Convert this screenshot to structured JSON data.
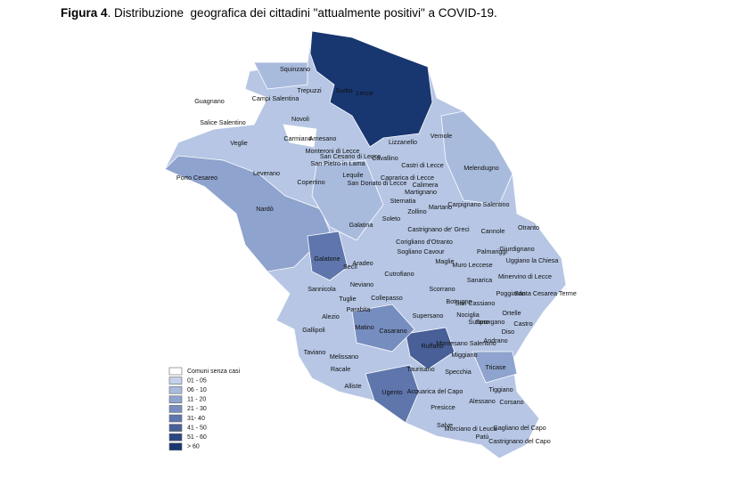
{
  "title": {
    "label": "Figura 4",
    "text": ". Distribuzione  geografica dei cittadini \"attualmente positivi\" a COVID-19."
  },
  "towns": [
    "Squinzano",
    "Trepuzzi",
    "Surbo",
    "Lecce",
    "Campi Salentina",
    "Guagnano",
    "Novoli",
    "Salice Salentino",
    "Veglie",
    "Carmiano",
    "Arnesano",
    "Monteroni di Lecce",
    "San Cesario di Lecce",
    "Lizzanello",
    "Cavallino",
    "Vernole",
    "Leverano",
    "San Pietro in Lama",
    "Castri di Lecce",
    "Melendugno",
    "Porto Cesareo",
    "Copertino",
    "Lequile",
    "Caprarica di Lecce",
    "San Donato di Lecce",
    "Calimera",
    "Martignano",
    "Sternatia",
    "Nardò",
    "Zollino",
    "Soleto",
    "Martano",
    "Carpignano Salentino",
    "Otranto",
    "Galatina",
    "Castrignano de' Greci",
    "Cannole",
    "Corigliano d'Otranto",
    "Sogliano Cavour",
    "Palmariggi",
    "Giurdignano",
    "Muro Leccese",
    "Maglie",
    "Uggiano la Chiesa",
    "Galatone",
    "Aradeo",
    "Seclì",
    "Cutrofiano",
    "Sanarica",
    "Minervino di Lecce",
    "Poggiardo",
    "Santa Cesarea Terme",
    "Neviano",
    "Sannicola",
    "Tuglie",
    "Collepasso",
    "Scorrano",
    "Botrugno",
    "San Cassiano",
    "Nociglia",
    "Supersano",
    "Surano",
    "Parabita",
    "Alezio",
    "Ortelle",
    "Spongano",
    "Castro",
    "Diso",
    "Matino",
    "Casarano",
    "Gallipoli",
    "Andrano",
    "Ruffano",
    "Montesano Salentino",
    "Taviano",
    "Melissano",
    "Miggiano",
    "Racale",
    "Taurisano",
    "Specchia",
    "Tricase",
    "Alliste",
    "Ugento",
    "Acquarica del Capo",
    "Tiggiano",
    "Alessano",
    "Corsano",
    "Presicce",
    "Salve",
    "Morciano di Leuca",
    "Gagliano del Capo",
    "Patù",
    "Castrignano del Capo"
  ],
  "legend": [
    {
      "label": "Comuni senza casi",
      "color": "#ffffff"
    },
    {
      "label": "01 - 05",
      "color": "#c4d1ea"
    },
    {
      "label": "06 - 10",
      "color": "#a9bbdd"
    },
    {
      "label": "11 - 20",
      "color": "#8ea3cd"
    },
    {
      "label": "21 - 30",
      "color": "#768dbf"
    },
    {
      "label": "31- 40",
      "color": "#5e76ac"
    },
    {
      "label": "41 - 50",
      "color": "#485f97"
    },
    {
      "label": "51 - 60",
      "color": "#2c4680"
    },
    {
      "label": "> 60",
      "color": "#183670"
    }
  ]
}
